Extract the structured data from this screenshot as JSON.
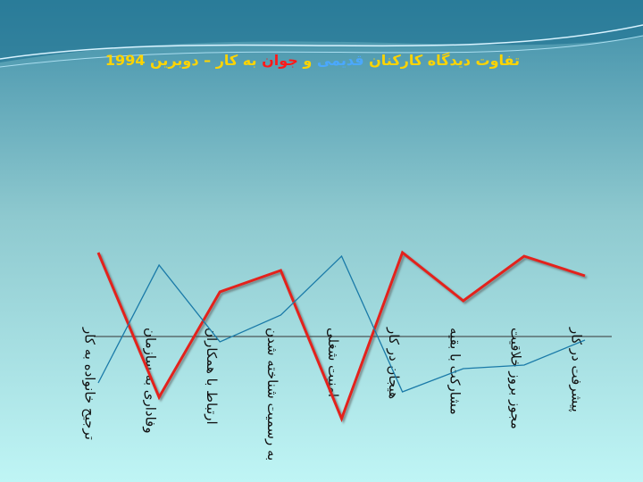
{
  "chart_data": {
    "type": "line",
    "title": [
      {
        "text": "تفاوت دیدگاه کارکنان",
        "color": "#ffd400"
      },
      {
        "text": "قدیمی",
        "color": "#4aa8ff"
      },
      {
        "text": "و",
        "color": "#ffd400"
      },
      {
        "text": "جوان",
        "color": "#ff1a1a"
      },
      {
        "text": "به کار",
        "color": "#ffd400"
      },
      {
        "text": "– دوبرین 1994",
        "color": "#ffd400"
      }
    ],
    "categories": [
      "ترجیح خانواده به کار",
      "وفاداری به سازمان",
      "ارتباط با همکاران",
      "به رسمیت شناخته شدن",
      "امنیت شغلی",
      "هیجان در کار",
      "مشارکت با بقیه",
      "مجوز بروز خلاقیت",
      "پیشرفت در کار"
    ],
    "series": [
      {
        "color": "#e3201b",
        "values": [
          4.7,
          -3.4,
          2.5,
          3.7,
          -4.6,
          4.7,
          2.0,
          4.5,
          3.4
        ]
      },
      {
        "color": "#1a7aa8",
        "values": [
          -2.6,
          4.0,
          -0.3,
          1.2,
          4.5,
          -3.1,
          -1.8,
          -1.6,
          -0.2
        ]
      }
    ],
    "ylim": [
      -8,
      8
    ]
  }
}
